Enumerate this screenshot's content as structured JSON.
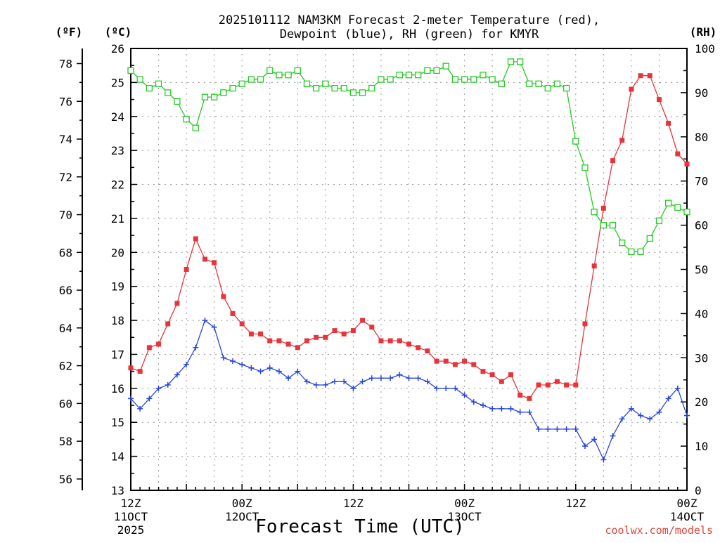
{
  "chart_data": {
    "type": "line",
    "title": "2025101112 NAM3KM Forecast 2-meter Temperature (red), Dewpoint (blue), RH (green) for KMYR",
    "title_lines": [
      "2025101112 NAM3KM Forecast 2-meter Temperature (red),",
      "Dewpoint (blue), RH (green) for KMYR"
    ],
    "xlabel": "Forecast Time (UTC)",
    "watermark": "coolwx.com/models",
    "units": {
      "fahrenheit": "(ºF)",
      "celsius": "(ºC)",
      "rh": "(RH)"
    },
    "x_range_hours": [
      0,
      60
    ],
    "celsius_axis": {
      "ylim": [
        13,
        26
      ],
      "ticks": [
        "13",
        "14",
        "15",
        "16",
        "17",
        "18",
        "19",
        "20",
        "21",
        "22",
        "23",
        "24",
        "25",
        "26"
      ]
    },
    "fahrenheit_axis": {
      "ylim_c": [
        13,
        26
      ],
      "ticks": [
        "56",
        "58",
        "60",
        "62",
        "64",
        "66",
        "68",
        "70",
        "72",
        "74",
        "76",
        "78"
      ]
    },
    "rh_axis": {
      "ylim": [
        0,
        100
      ],
      "ticks": [
        "0",
        "10",
        "20",
        "30",
        "40",
        "50",
        "60",
        "70",
        "80",
        "90",
        "100"
      ]
    },
    "x_ticks": [
      {
        "hour": 0,
        "l1": "12Z",
        "l2": "11OCT",
        "l3": "2025"
      },
      {
        "hour": 12,
        "l1": "00Z",
        "l2": "12OCT",
        "l3": ""
      },
      {
        "hour": 24,
        "l1": "12Z",
        "l2": "",
        "l3": ""
      },
      {
        "hour": 36,
        "l1": "00Z",
        "l2": "13OCT",
        "l3": ""
      },
      {
        "hour": 48,
        "l1": "12Z",
        "l2": "",
        "l3": ""
      },
      {
        "hour": 60,
        "l1": "00Z",
        "l2": "14OCT",
        "l3": ""
      }
    ],
    "series": [
      {
        "name": "2-meter Temperature",
        "unit": "C",
        "color": "#e8333a",
        "marker": "filled-square",
        "axis": "celsius",
        "x": [
          0,
          1,
          2,
          3,
          4,
          5,
          6,
          7,
          8,
          9,
          10,
          11,
          12,
          13,
          14,
          15,
          16,
          17,
          18,
          19,
          20,
          21,
          22,
          23,
          24,
          25,
          26,
          27,
          28,
          29,
          30,
          31,
          32,
          33,
          34,
          35,
          36,
          37,
          38,
          39,
          40,
          41,
          42,
          43,
          44,
          45,
          46,
          47,
          48,
          49,
          50,
          51,
          52,
          53,
          54,
          55,
          56,
          57,
          58,
          59,
          60
        ],
        "values": [
          16.6,
          16.5,
          17.2,
          17.3,
          17.9,
          18.5,
          19.5,
          20.4,
          19.8,
          19.7,
          18.7,
          18.2,
          17.9,
          17.6,
          17.6,
          17.4,
          17.4,
          17.3,
          17.2,
          17.4,
          17.5,
          17.5,
          17.7,
          17.6,
          17.7,
          18.0,
          17.8,
          17.4,
          17.4,
          17.4,
          17.3,
          17.2,
          17.1,
          16.8,
          16.8,
          16.7,
          16.8,
          16.7,
          16.5,
          16.4,
          16.2,
          16.4,
          15.8,
          15.7,
          16.1,
          16.1,
          16.2,
          16.1,
          16.1,
          17.9,
          19.6,
          21.3,
          22.7,
          23.3,
          24.8,
          25.2,
          25.2,
          24.5,
          23.8,
          22.9,
          22.6
        ]
      },
      {
        "name": "Dewpoint",
        "unit": "C",
        "color": "#2545e0",
        "marker": "plus",
        "axis": "celsius",
        "x": [
          0,
          1,
          2,
          3,
          4,
          5,
          6,
          7,
          8,
          9,
          10,
          11,
          12,
          13,
          14,
          15,
          16,
          17,
          18,
          19,
          20,
          21,
          22,
          23,
          24,
          25,
          26,
          27,
          28,
          29,
          30,
          31,
          32,
          33,
          34,
          35,
          36,
          37,
          38,
          39,
          40,
          41,
          42,
          43,
          44,
          45,
          46,
          47,
          48,
          49,
          50,
          51,
          52,
          53,
          54,
          55,
          56,
          57,
          58,
          59,
          60
        ],
        "values": [
          15.7,
          15.4,
          15.7,
          16.0,
          16.1,
          16.4,
          16.7,
          17.2,
          18.0,
          17.8,
          16.9,
          16.8,
          16.7,
          16.6,
          16.5,
          16.6,
          16.5,
          16.3,
          16.5,
          16.2,
          16.1,
          16.1,
          16.2,
          16.2,
          16.0,
          16.2,
          16.3,
          16.3,
          16.3,
          16.4,
          16.3,
          16.3,
          16.2,
          16.0,
          16.0,
          16.0,
          15.8,
          15.6,
          15.5,
          15.4,
          15.4,
          15.4,
          15.3,
          15.3,
          14.8,
          14.8,
          14.8,
          14.8,
          14.8,
          14.3,
          14.5,
          13.9,
          14.6,
          15.1,
          15.4,
          15.2,
          15.1,
          15.3,
          15.7,
          16.0,
          15.2
        ]
      },
      {
        "name": "RH",
        "unit": "%",
        "color": "#22cc22",
        "marker": "open-square",
        "axis": "rh",
        "x": [
          0,
          1,
          2,
          3,
          4,
          5,
          6,
          7,
          8,
          9,
          10,
          11,
          12,
          13,
          14,
          15,
          16,
          17,
          18,
          19,
          20,
          21,
          22,
          23,
          24,
          25,
          26,
          27,
          28,
          29,
          30,
          31,
          32,
          33,
          34,
          35,
          36,
          37,
          38,
          39,
          40,
          41,
          42,
          43,
          44,
          45,
          46,
          47,
          48,
          49,
          50,
          51,
          52,
          53,
          54,
          55,
          56,
          57,
          58,
          59,
          60
        ],
        "values": [
          95,
          93,
          91,
          92,
          90,
          88,
          84,
          82,
          89,
          89,
          90,
          91,
          92,
          93,
          93,
          95,
          94,
          94,
          95,
          92,
          91,
          92,
          91,
          91,
          90,
          90,
          91,
          93,
          93,
          94,
          94,
          94,
          95,
          95,
          96,
          93,
          93,
          93,
          94,
          93,
          92,
          97,
          97,
          92,
          92,
          91,
          92,
          91,
          79,
          73,
          63,
          60,
          60,
          56,
          54,
          54,
          57,
          61,
          65,
          64,
          63
        ]
      }
    ]
  }
}
